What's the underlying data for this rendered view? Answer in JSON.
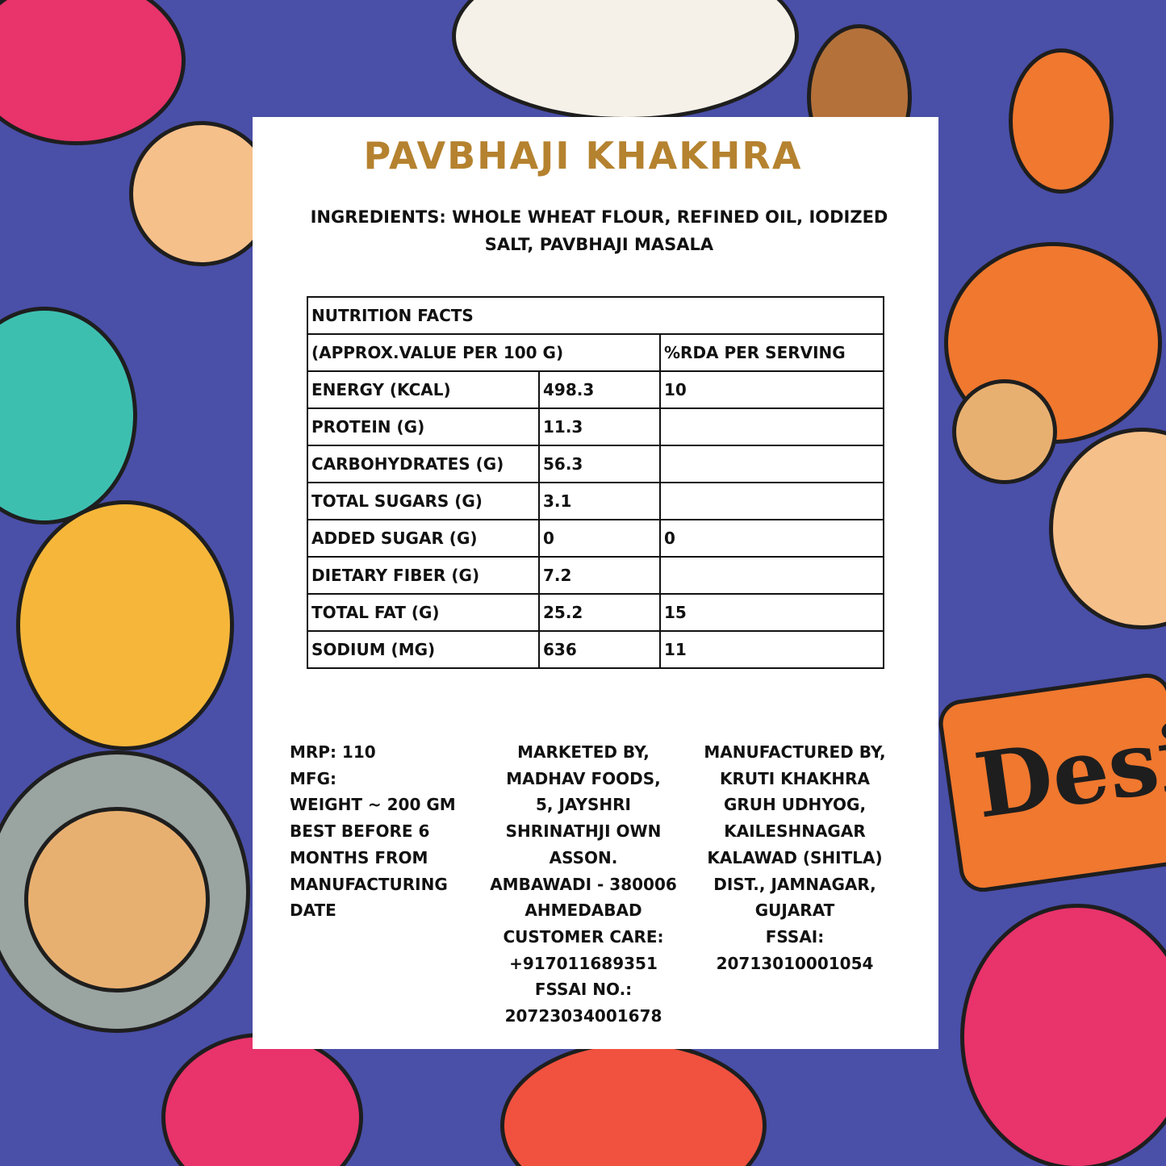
{
  "product": {
    "title": "PAVBHAJI KHAKHRA",
    "title_color": "#b5822f"
  },
  "ingredients": {
    "lines": [
      "INGREDIENTS: WHOLE WHEAT FLOUR, REFINED OIL,  IODIZED",
      "SALT, PAVBHAJI MASALA"
    ]
  },
  "nutrition": {
    "heading": "NUTRITION FACTS",
    "subheader": {
      "basis": "(APPROX.VALUE PER 100 G)",
      "rda": "%RDA PER SERVING"
    },
    "rows": [
      {
        "nutrient": "ENERGY (KCAL)",
        "value": "498.3",
        "rda": "10"
      },
      {
        "nutrient": "PROTEIN (G)",
        "value": "11.3",
        "rda": ""
      },
      {
        "nutrient": "CARBOHYDRATES (G)",
        "value": "56.3",
        "rda": ""
      },
      {
        "nutrient": "TOTAL SUGARS (G)",
        "value": "3.1",
        "rda": ""
      },
      {
        "nutrient": "ADDED SUGAR (G)",
        "value": "0",
        "rda": "0"
      },
      {
        "nutrient": "DIETARY FIBER (G)",
        "value": "7.2",
        "rda": ""
      },
      {
        "nutrient": "TOTAL FAT (G)",
        "value": "25.2",
        "rda": "15"
      },
      {
        "nutrient": "SODIUM (MG)",
        "value": "636",
        "rda": "11"
      }
    ]
  },
  "info": {
    "left": [
      "MRP: 110",
      "MFG:",
      "WEIGHT  ~  200 GM",
      "BEST BEFORE 6",
      "MONTHS FROM",
      "MANUFACTURING",
      "DATE"
    ],
    "marketed": [
      "MARKETED BY,",
      "MADHAV FOODS,",
      "5, JAYSHRI",
      "SHRINATHJI OWN",
      "ASSON.",
      "AMBAWADI - 380006",
      "AHMEDABAD",
      "CUSTOMER CARE:",
      "+917011689351",
      "FSSAI NO.:",
      "20723034001678"
    ],
    "manufactured": [
      "MANUFACTURED BY,",
      "KRUTI KHAKHRA",
      "GRUH UDHYOG,",
      "KAILESHNAGAR",
      "KALAWAD (SHITLA)",
      "DIST., JAMNAGAR,",
      "GUJARAT",
      "FSSAI:",
      "20713010001054"
    ]
  },
  "background": {
    "illustration": "colorful-food-doodle",
    "badge_text": "Desi",
    "colors": [
      "#4a4fa8",
      "#f0782f",
      "#e8336b",
      "#3dbfb0",
      "#f5b63a",
      "#f6c08a"
    ]
  }
}
